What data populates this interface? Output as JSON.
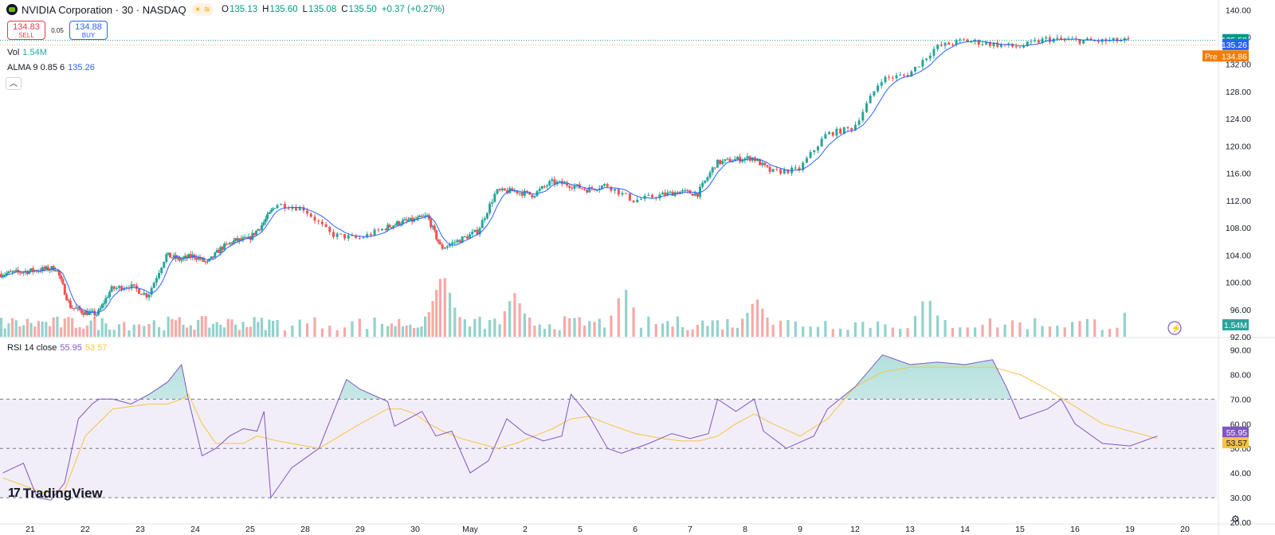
{
  "header": {
    "symbol_title": "NVIDIA Corporation · 30 · NASDAQ",
    "ohlc": [
      {
        "key": "O",
        "value": "135.13"
      },
      {
        "key": "H",
        "value": "135.60"
      },
      {
        "key": "L",
        "value": "135.08"
      },
      {
        "key": "C",
        "value": "135.50"
      },
      {
        "key": "",
        "value": "+0.37 (+0.27%)"
      }
    ],
    "pill_icons": [
      "sun-icon",
      "waves-icon"
    ]
  },
  "trade": {
    "sell_price": "134.83",
    "sell_label": "SELL",
    "spread": "0.05",
    "buy_price": "134.88",
    "buy_label": "BUY"
  },
  "indicators": {
    "vol": {
      "name": "Vol",
      "value": "1.54M"
    },
    "alma": {
      "name": "ALMA 9 0.85 6",
      "value": "135.26"
    },
    "rsi": {
      "name": "RSI 14 close",
      "value": "55.95",
      "ma_value": "53.57"
    }
  },
  "brand": "TradingView",
  "icons": {
    "collapse": "chevron-up-icon",
    "settings": "gear-icon",
    "flash": "lightning-icon"
  },
  "colors": {
    "up": "#26a69a",
    "down": "#ef5350",
    "alma": "#2962ff",
    "rsi": "#7e57c2",
    "rsi_ma": "#f7c344",
    "pre": "#f57c00",
    "last": "#089981"
  },
  "chart_data": [
    {
      "type": "candlestick",
      "title": "NVIDIA Corporation · 30 · NASDAQ",
      "x_ticks": [
        "21",
        "22",
        "23",
        "24",
        "25",
        "28",
        "29",
        "30",
        "May",
        "2",
        "5",
        "6",
        "7",
        "8",
        "9",
        "12",
        "13",
        "14",
        "15",
        "16",
        "19",
        "20"
      ],
      "y_ticks": [
        "92.00",
        "96.00",
        "100.00",
        "104.00",
        "108.00",
        "112.00",
        "116.00",
        "120.00",
        "124.00",
        "128.00",
        "132.00",
        "136.00",
        "140.00"
      ],
      "ylim": [
        92,
        140.5
      ],
      "ohlc_path": [
        [
          0,
          101.2
        ],
        [
          4,
          102.1
        ],
        [
          5,
          96.5
        ],
        [
          6,
          95.6
        ],
        [
          7,
          95.3
        ],
        [
          8,
          99.0
        ],
        [
          9,
          99.5
        ],
        [
          10,
          98.0
        ],
        [
          11,
          104.0
        ],
        [
          12,
          103.3
        ],
        [
          13,
          103.9
        ],
        [
          14,
          102.8
        ],
        [
          15,
          105.0
        ],
        [
          16,
          106.1
        ],
        [
          17,
          106.3
        ],
        [
          18,
          108.5
        ],
        [
          19,
          111.5
        ],
        [
          20,
          110.8
        ],
        [
          21,
          107.0
        ],
        [
          22,
          106.4
        ],
        [
          23,
          108.0
        ],
        [
          24,
          108.8
        ],
        [
          25,
          109.1
        ],
        [
          26,
          109.7
        ],
        [
          27,
          105.0
        ],
        [
          28,
          106.2
        ],
        [
          29,
          107.5
        ],
        [
          30,
          113.3
        ],
        [
          31,
          113.4
        ],
        [
          32,
          112.8
        ],
        [
          33,
          114.7
        ],
        [
          34,
          114.3
        ],
        [
          35,
          113.6
        ],
        [
          36,
          114.3
        ],
        [
          37,
          112.0
        ],
        [
          38,
          112.8
        ],
        [
          39,
          113.3
        ],
        [
          40,
          113.0
        ],
        [
          41,
          117.5
        ],
        [
          42,
          118.0
        ],
        [
          43,
          118.3
        ],
        [
          44,
          116.2
        ],
        [
          45,
          116.5
        ],
        [
          46,
          121.7
        ],
        [
          47,
          122.7
        ],
        [
          48,
          129.8
        ],
        [
          49,
          130.5
        ],
        [
          50,
          134.5
        ],
        [
          51,
          135.5
        ],
        [
          52,
          135.0
        ],
        [
          53,
          134.5
        ],
        [
          54,
          135.7
        ],
        [
          55,
          135.5
        ],
        [
          56,
          135.4
        ],
        [
          57,
          135.5
        ]
      ],
      "day_bounds": [
        0,
        4,
        8,
        11,
        15,
        19,
        21,
        23,
        27,
        30,
        33,
        36,
        38,
        41,
        44,
        46,
        48,
        50,
        52,
        54,
        56,
        58
      ],
      "last_price": "135.50",
      "alma_value": "135.26",
      "pre_label": "Pre",
      "pre_price": "134.86",
      "volume_label": "1.54M",
      "volume_spikes": [
        [
          7.5,
          0.76
        ],
        [
          8.8,
          0.52
        ],
        [
          10.8,
          0.6
        ],
        [
          13.2,
          0.46
        ],
        [
          16.3,
          0.5
        ],
        [
          20.1,
          0.55
        ],
        [
          24.5,
          0.32
        ],
        [
          27.7,
          0.45
        ],
        [
          29.5,
          0.68
        ],
        [
          33.2,
          0.58
        ],
        [
          38.0,
          0.32
        ],
        [
          41.0,
          1.0
        ],
        [
          46.3,
          0.62
        ],
        [
          48.3,
          0.78
        ],
        [
          50.0,
          0.82
        ],
        [
          52.8,
          0.44
        ],
        [
          54.6,
          0.4
        ],
        [
          56.2,
          0.48
        ],
        [
          57.8,
          0.28
        ]
      ]
    },
    {
      "type": "line",
      "title": "RSI 14 close",
      "series": [
        {
          "name": "RSI 14 close",
          "value": "55.95",
          "path": [
            [
              0,
              40
            ],
            [
              1.5,
              44
            ],
            [
              2.5,
              30
            ],
            [
              3.5,
              29
            ],
            [
              4.5,
              36
            ],
            [
              5.5,
              62
            ],
            [
              6.5,
              68
            ],
            [
              7,
              70
            ],
            [
              8,
              70
            ],
            [
              9,
              68
            ],
            [
              10,
              72
            ],
            [
              11,
              77
            ],
            [
              12,
              84
            ],
            [
              12.5,
              70
            ],
            [
              13.5,
              47
            ],
            [
              14.5,
              50
            ],
            [
              15.5,
              55
            ],
            [
              16.5,
              58
            ],
            [
              17.5,
              57
            ],
            [
              18,
              65
            ],
            [
              18.5,
              30
            ],
            [
              19.5,
              42
            ],
            [
              20.5,
              50
            ],
            [
              21.5,
              78
            ],
            [
              22,
              74
            ],
            [
              23,
              69
            ],
            [
              23.5,
              59
            ],
            [
              24.5,
              62
            ],
            [
              25.5,
              65
            ],
            [
              26.5,
              55
            ],
            [
              27.5,
              57
            ],
            [
              28.5,
              40
            ],
            [
              29.5,
              45
            ],
            [
              30.5,
              62
            ],
            [
              31.5,
              56
            ],
            [
              32.5,
              53
            ],
            [
              33.5,
              55
            ],
            [
              34,
              72
            ],
            [
              35,
              63
            ],
            [
              36,
              50
            ],
            [
              36.5,
              48
            ],
            [
              37.5,
              52
            ],
            [
              38.5,
              56
            ],
            [
              39.5,
              54
            ],
            [
              40.5,
              56
            ],
            [
              41,
              70
            ],
            [
              42,
              65
            ],
            [
              43,
              70
            ],
            [
              43.5,
              57
            ],
            [
              44.5,
              50
            ],
            [
              45.5,
              55
            ],
            [
              46,
              66
            ],
            [
              47,
              75
            ],
            [
              48,
              88
            ],
            [
              49,
              84
            ],
            [
              50,
              85
            ],
            [
              51,
              84
            ],
            [
              52,
              86
            ],
            [
              52.5,
              75
            ],
            [
              53,
              62
            ],
            [
              54,
              66
            ],
            [
              54.5,
              70
            ],
            [
              55,
              60
            ],
            [
              56,
              52
            ],
            [
              57,
              51
            ],
            [
              58,
              55
            ]
          ]
        },
        {
          "name": "RSI MA",
          "value": "53.57",
          "path": [
            [
              0,
              38
            ],
            [
              3,
              32
            ],
            [
              4.5,
              33
            ],
            [
              6,
              55
            ],
            [
              8,
              66
            ],
            [
              10,
              68
            ],
            [
              11,
              68
            ],
            [
              12,
              70
            ],
            [
              12.5,
              72
            ],
            [
              13.5,
              60
            ],
            [
              14.5,
              52
            ],
            [
              15.5,
              52
            ],
            [
              16.5,
              52
            ],
            [
              17.5,
              55
            ],
            [
              19,
              53
            ],
            [
              20.5,
              50
            ],
            [
              22,
              60
            ],
            [
              23,
              66
            ],
            [
              24,
              66
            ],
            [
              25,
              64
            ],
            [
              26,
              60
            ],
            [
              27,
              57
            ],
            [
              28,
              54
            ],
            [
              29,
              52
            ],
            [
              30,
              50
            ],
            [
              31,
              52
            ],
            [
              32,
              55
            ],
            [
              33,
              58
            ],
            [
              34,
              62
            ],
            [
              35,
              63
            ],
            [
              36,
              60
            ],
            [
              37,
              56
            ],
            [
              38,
              54
            ],
            [
              39,
              53
            ],
            [
              40,
              53
            ],
            [
              41,
              55
            ],
            [
              42,
              60
            ],
            [
              43,
              64
            ],
            [
              44,
              60
            ],
            [
              45,
              55
            ],
            [
              46,
              62
            ],
            [
              47,
              75
            ],
            [
              48,
              81
            ],
            [
              49,
              83
            ],
            [
              50,
              83
            ],
            [
              51,
              83
            ],
            [
              52,
              83
            ],
            [
              53,
              80
            ],
            [
              54,
              74
            ],
            [
              55,
              67
            ],
            [
              56,
              60
            ],
            [
              57,
              57
            ],
            [
              58,
              54
            ]
          ]
        }
      ],
      "y_ticks": [
        "20.00",
        "30.00",
        "40.00",
        "50.00",
        "60.00",
        "70.00",
        "80.00",
        "90.00"
      ],
      "ylim": [
        20,
        95
      ],
      "levels": [
        30,
        50,
        70
      ],
      "grid": false
    }
  ]
}
